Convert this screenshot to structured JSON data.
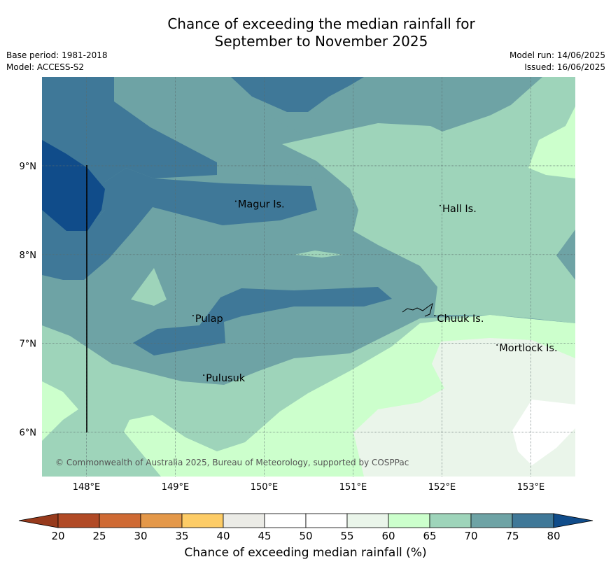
{
  "title": {
    "line1": "Chance of exceeding the median rainfall for",
    "line2": "September to November 2025"
  },
  "meta": {
    "base_period": "Base period: 1981-2018",
    "model": "Model: ACCESS-S2",
    "model_run": "Model run: 14/06/2025",
    "issued": "Issued: 16/06/2025"
  },
  "map": {
    "lon_range": [
      147.5,
      153.5
    ],
    "lat_range": [
      5.5,
      10.0
    ],
    "x_ticks": [
      "148°E",
      "149°E",
      "150°E",
      "151°E",
      "152°E",
      "153°E"
    ],
    "x_tick_values": [
      148,
      149,
      150,
      151,
      152,
      153
    ],
    "y_ticks": [
      "6°N",
      "7°N",
      "8°N",
      "9°N"
    ],
    "y_tick_values": [
      6,
      7,
      8,
      9
    ],
    "grid": true,
    "places": [
      {
        "name": "Magur Is.",
        "lon": 149.68,
        "lat": 8.57
      },
      {
        "name": "Hall Is.",
        "lon": 151.98,
        "lat": 8.52
      },
      {
        "name": "Pulap",
        "lon": 149.2,
        "lat": 7.28
      },
      {
        "name": "Chuuk Is.",
        "lon": 151.92,
        "lat": 7.28
      },
      {
        "name": "Mortlock Is.",
        "lon": 152.62,
        "lat": 6.95
      },
      {
        "name": "Pulusuk",
        "lon": 149.32,
        "lat": 6.61
      }
    ],
    "copyright": "© Commonwealth of Australia 2025, Bureau of Meteorology, supported by COSPPac"
  },
  "colorbar": {
    "ticks": [
      "20",
      "25",
      "30",
      "35",
      "40",
      "45",
      "50",
      "55",
      "60",
      "65",
      "70",
      "75",
      "80"
    ],
    "colors": [
      "#b14a26",
      "#cf6a34",
      "#e49849",
      "#fdcc66",
      "#ebebe6",
      "#ffffff",
      "#ffffff",
      "#eaf5ea",
      "#ccffcc",
      "#9ed4ba",
      "#6ea3a5",
      "#3f7898"
    ],
    "under_color": "#973a1c",
    "over_color": "#104c8a",
    "label": "Chance of exceeding median rainfall (%)"
  }
}
